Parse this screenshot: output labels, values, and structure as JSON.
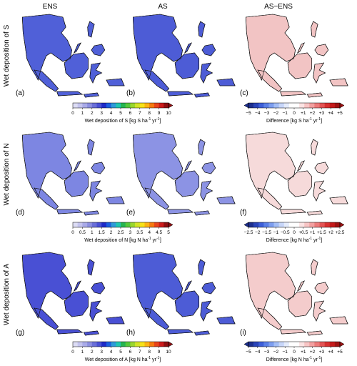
{
  "columns": [
    "ENS",
    "AS",
    "AS−ENS"
  ],
  "row_labels": [
    "Wet deposition of S",
    "Wet deposition of N",
    "Wet deposition of A"
  ],
  "panel_labels": [
    "(a)",
    "(b)",
    "(c)",
    "(d)",
    "(e)",
    "(f)",
    "(g)",
    "(h)",
    "(i)"
  ],
  "colorbars": [
    {
      "id": "s-abs",
      "ticks": [
        "0",
        "1",
        "2",
        "3",
        "4",
        "5",
        "6",
        "7",
        "8",
        "9",
        "10"
      ],
      "title_main": "Wet deposition of S [kg S ha",
      "title_sup1": "-1",
      "title_mid": " yr",
      "title_sup2": "-1",
      "title_end": "]",
      "colors": [
        "#dcdcf4",
        "#c4c4ee",
        "#a9aae8",
        "#8c8fe0",
        "#6a6fd8",
        "#4950d4",
        "#1f2bc8",
        "#1c5fe0",
        "#2f9ad8",
        "#21c6b0",
        "#26b451",
        "#55c83a",
        "#9ad62e",
        "#d2e426",
        "#f6e21a",
        "#fbb313",
        "#f57a10",
        "#e8441b",
        "#cc1b1b",
        "#8e0f12"
      ]
    },
    {
      "id": "s-diff",
      "ticks": [
        "−5",
        "−4",
        "−3",
        "−2",
        "−1",
        "0",
        "+1",
        "+2",
        "+3",
        "+4",
        "+5"
      ],
      "title_main": "Difference [kg S ha",
      "title_sup1": "-1",
      "title_mid": " yr",
      "title_sup2": "-1",
      "title_end": "]",
      "colors": [
        "#1d2f8e",
        "#2a44b8",
        "#3d5fd8",
        "#5a7fe6",
        "#7d9eef",
        "#a3bdf5",
        "#c7d6f9",
        "#e4ebfb",
        "#ffffff",
        "#ffffff",
        "#fbe3e3",
        "#f7c4c4",
        "#f2a0a0",
        "#ec7a7a",
        "#e35454",
        "#d73030",
        "#c41a1a",
        "#9e1212"
      ]
    },
    {
      "id": "n-abs",
      "ticks": [
        "0",
        "0.5",
        "1",
        "1.5",
        "2",
        "2.5",
        "3",
        "3.5",
        "4",
        "4.5",
        "5"
      ],
      "title_main": "Wet deposition of N [kg N ha",
      "title_sup1": "-1",
      "title_mid": " yr",
      "title_sup2": "-1",
      "title_end": "]",
      "colors": [
        "#dcdcf4",
        "#c4c4ee",
        "#a9aae8",
        "#8c8fe0",
        "#6a6fd8",
        "#4950d4",
        "#1f2bc8",
        "#1c5fe0",
        "#2f9ad8",
        "#21c6b0",
        "#26b451",
        "#55c83a",
        "#9ad62e",
        "#d2e426",
        "#f6e21a",
        "#fbb313",
        "#f57a10",
        "#e8441b",
        "#cc1b1b",
        "#8e0f12"
      ]
    },
    {
      "id": "n-diff",
      "ticks": [
        "−2.5",
        "−2",
        "−1.5",
        "−1",
        "−0.5",
        "0",
        "+0.5",
        "+1",
        "+1.5",
        "+2",
        "+2.5"
      ],
      "title_main": "Difference [kg N ha",
      "title_sup1": "-1",
      "title_mid": " yr",
      "title_sup2": "-1",
      "title_end": "]",
      "colors": [
        "#1d2f8e",
        "#2a44b8",
        "#3d5fd8",
        "#5a7fe6",
        "#7d9eef",
        "#a3bdf5",
        "#c7d6f9",
        "#e4ebfb",
        "#ffffff",
        "#ffffff",
        "#fbe3e3",
        "#f7c4c4",
        "#f2a0a0",
        "#ec7a7a",
        "#e35454",
        "#d73030",
        "#c41a1a",
        "#9e1212"
      ]
    },
    {
      "id": "a-abs",
      "ticks": [
        "0",
        "1",
        "2",
        "3",
        "4",
        "5",
        "6",
        "7",
        "8",
        "9",
        "10"
      ],
      "title_main": "Wet deposition of A [kg N ha",
      "title_sup1": "-1",
      "title_mid": " yr",
      "title_sup2": "-1",
      "title_end": "]",
      "colors": [
        "#dcdcf4",
        "#c4c4ee",
        "#a9aae8",
        "#8c8fe0",
        "#6a6fd8",
        "#4950d4",
        "#1f2bc8",
        "#1c5fe0",
        "#2f9ad8",
        "#21c6b0",
        "#26b451",
        "#55c83a",
        "#9ad62e",
        "#d2e426",
        "#f6e21a",
        "#fbb313",
        "#f57a10",
        "#e8441b",
        "#cc1b1b",
        "#8e0f12"
      ]
    },
    {
      "id": "a-diff",
      "ticks": [
        "−5",
        "−4",
        "−3",
        "−2",
        "−1",
        "0",
        "+1",
        "+2",
        "+3",
        "+4",
        "+5"
      ],
      "title_main": "Difference [kg N ha",
      "title_sup1": "-1",
      "title_mid": " yr",
      "title_sup2": "-1",
      "title_end": "]",
      "colors": [
        "#1d2f8e",
        "#2a44b8",
        "#3d5fd8",
        "#5a7fe6",
        "#7d9eef",
        "#a3bdf5",
        "#c7d6f9",
        "#e4ebfb",
        "#ffffff",
        "#ffffff",
        "#fbe3e3",
        "#f7c4c4",
        "#f2a0a0",
        "#ec7a7a",
        "#e35454",
        "#d73030",
        "#c41a1a",
        "#9e1212"
      ]
    }
  ],
  "panel_styles": {
    "a": {
      "base": "#5060d8",
      "inland": "#2fae5a",
      "hot": "#8e0f12",
      "sumatra": "#f0a020",
      "java": "#b01515"
    },
    "b": {
      "base": "#4d5cd6",
      "inland": "#36b868",
      "hot": "#cc1b1b",
      "sumatra": "#9ad62e",
      "java": "#cc1b1b"
    },
    "c": {
      "base": "#f2c4c4",
      "inland": "#5a7fe6",
      "hot": "#e35454",
      "sumatra": "#ec7a7a",
      "java": "#f2a0a0"
    },
    "d": {
      "base": "#7d86e2",
      "inland": "#2fae5a",
      "hot": "#e8441b",
      "sumatra": "#2f9ad8",
      "java": "#f57a10"
    },
    "e": {
      "base": "#8c93e4",
      "inland": "#2f9ad8",
      "hot": "#cc1b1b",
      "sumatra": "#4950d4",
      "java": "#e8441b"
    },
    "f": {
      "base": "#f6dada",
      "inland": "#a3bdf5",
      "hot": "#ec7a7a",
      "sumatra": "#c7d6f9",
      "java": "#f2a0a0"
    },
    "g": {
      "base": "#4950d4",
      "inland": "#55c83a",
      "hot": "#cc1b1b",
      "sumatra": "#d2e426",
      "java": "#8e0f12"
    },
    "h": {
      "base": "#4d5cd6",
      "inland": "#36b868",
      "hot": "#cc1b1b",
      "sumatra": "#9ad62e",
      "java": "#cc1b1b"
    },
    "i": {
      "base": "#f4cccc",
      "inland": "#3d5fd8",
      "hot": "#d73030",
      "sumatra": "#e35454",
      "java": "#f2a0a0"
    }
  }
}
